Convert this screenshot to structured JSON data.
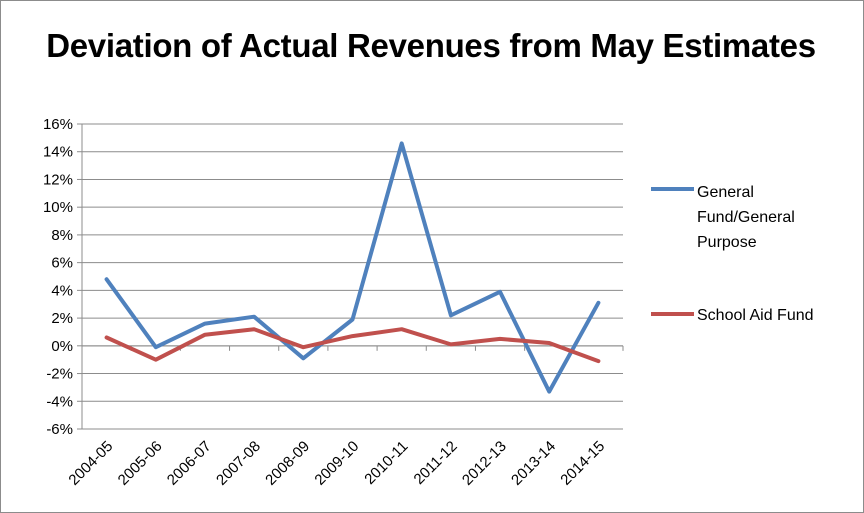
{
  "chart_data": {
    "type": "line",
    "title": "Deviation of Actual Revenues from May Estimates",
    "categories": [
      "2004-05",
      "2005-06",
      "2006-07",
      "2007-08",
      "2008-09",
      "2009-10",
      "2010-11",
      "2011-12",
      "2012-13",
      "2013-14",
      "2014-15"
    ],
    "series": [
      {
        "name": "General Fund/General Purpose",
        "color": "#4f81bd",
        "values": [
          4.8,
          -0.1,
          1.6,
          2.1,
          -0.9,
          1.9,
          14.6,
          2.2,
          3.9,
          -3.3,
          3.1
        ]
      },
      {
        "name": "School Aid Fund",
        "color": "#c0504d",
        "values": [
          0.6,
          -1.0,
          0.8,
          1.2,
          -0.1,
          0.7,
          1.2,
          0.1,
          0.5,
          0.2,
          -1.1
        ]
      }
    ],
    "ylim": [
      -6,
      16
    ],
    "yticks": [
      "16%",
      "14%",
      "12%",
      "10%",
      "8%",
      "6%",
      "4%",
      "2%",
      "0%",
      "-2%",
      "-4%",
      "-6%"
    ],
    "grid": true,
    "legend_position": "right"
  }
}
